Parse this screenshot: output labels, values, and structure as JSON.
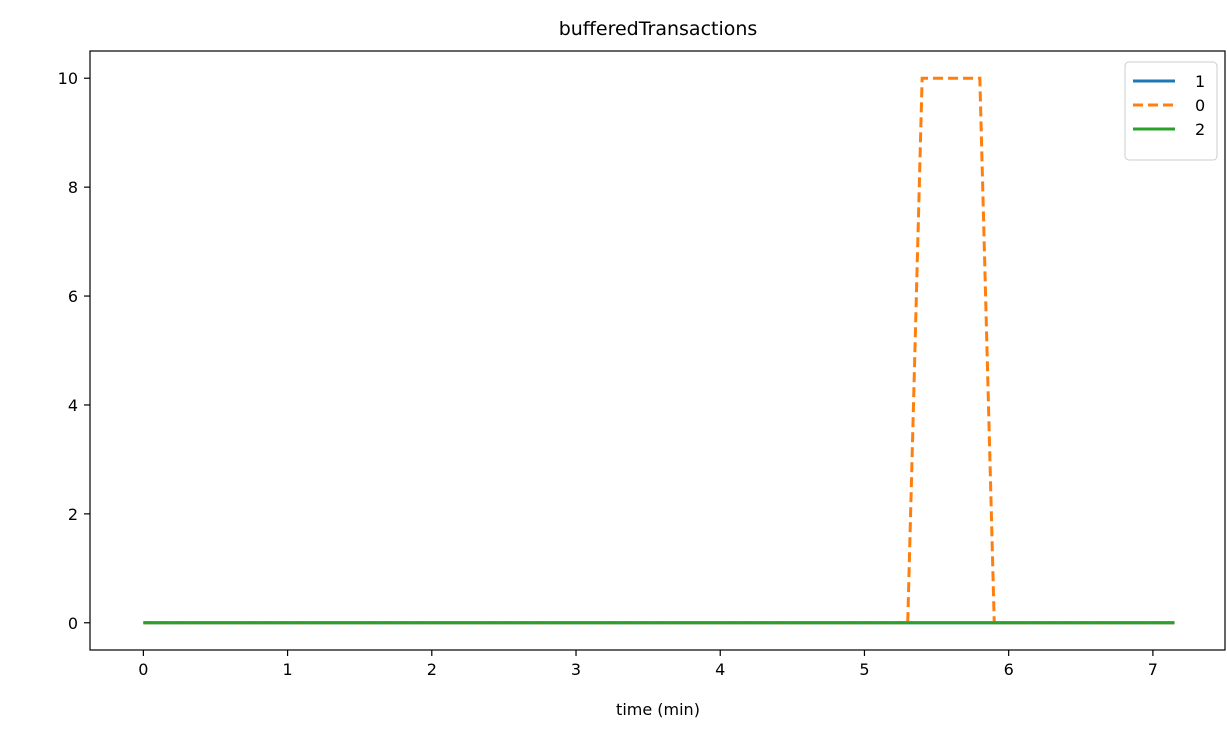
{
  "chart_data": {
    "type": "line",
    "title": "bufferedTransactions",
    "xlabel": "time (min)",
    "ylabel": "",
    "xlim": [
      -0.37,
      7.5
    ],
    "ylim": [
      -0.5,
      10.5
    ],
    "xticks": [
      0,
      1,
      2,
      3,
      4,
      5,
      6,
      7
    ],
    "yticks": [
      0,
      2,
      4,
      6,
      8,
      10
    ],
    "grid": false,
    "legend_position": "top-right",
    "series": [
      {
        "name": "1",
        "color": "#1f77b4",
        "style": "solid",
        "x": [
          0,
          7.15
        ],
        "y": [
          0,
          0
        ]
      },
      {
        "name": "0",
        "color": "#ff7f0e",
        "style": "dashed",
        "x": [
          0,
          5.3,
          5.4,
          5.8,
          5.9,
          7.15
        ],
        "y": [
          0,
          0,
          10,
          10,
          0,
          0
        ]
      },
      {
        "name": "2",
        "color": "#2ca02c",
        "style": "solid",
        "x": [
          0,
          7.15
        ],
        "y": [
          0,
          0
        ]
      }
    ]
  }
}
